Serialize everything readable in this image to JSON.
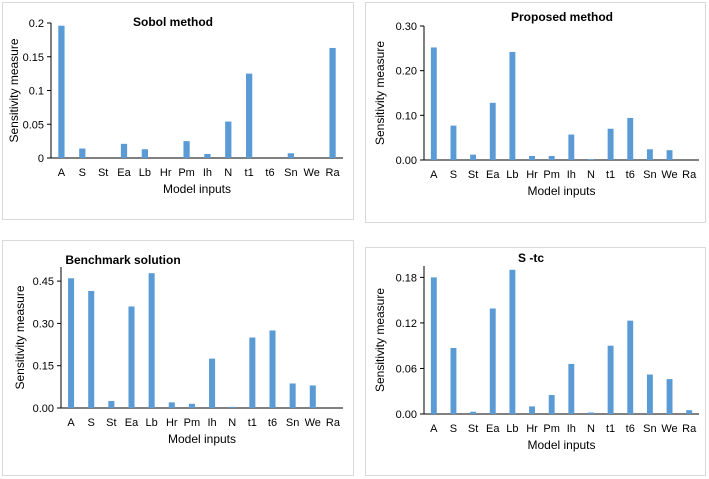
{
  "chart_data": [
    {
      "type": "bar",
      "title": "Sobol method",
      "xlabel": "Model inputs",
      "ylabel": "Sensitivity measure",
      "categories": [
        "A",
        "S",
        "St",
        "Ea",
        "Lb",
        "Hr",
        "Pm",
        "Ih",
        "N",
        "t1",
        "t6",
        "Sn",
        "We",
        "Ra"
      ],
      "values": [
        0.196,
        0.014,
        0,
        0.021,
        0.013,
        0,
        0.025,
        0.006,
        0.054,
        0.125,
        0,
        0.007,
        0,
        0.163
      ],
      "ylim": [
        0,
        0.2
      ],
      "yticks": [
        "0",
        "0.05",
        "0.1",
        "0.15",
        "0.2"
      ],
      "ytick_values": [
        0,
        0.05,
        0.1,
        0.15,
        0.2
      ],
      "color": "#5b9bd5"
    },
    {
      "type": "bar",
      "title": "Proposed method",
      "xlabel": "Model inputs",
      "ylabel": "Sensitivity measure",
      "categories": [
        "A",
        "S",
        "St",
        "Ea",
        "Lb",
        "Hr",
        "Pm",
        "Ih",
        "N",
        "t1",
        "t6",
        "Sn",
        "We",
        "Ra"
      ],
      "values": [
        0.252,
        0.077,
        0.012,
        0.128,
        0.242,
        0.009,
        0.009,
        0.057,
        0.002,
        0.07,
        0.094,
        0.024,
        0.022,
        0
      ],
      "ylim": [
        0,
        0.3
      ],
      "yticks": [
        "0.00",
        "0.10",
        "0.20",
        "0.30"
      ],
      "ytick_values": [
        0,
        0.1,
        0.2,
        0.3
      ],
      "color": "#5b9bd5"
    },
    {
      "type": "bar",
      "title": "Benchmark solution",
      "xlabel": "Model inputs",
      "ylabel": "Sensitivity measure",
      "categories": [
        "A",
        "S",
        "St",
        "Ea",
        "Lb",
        "Hr",
        "Pm",
        "Ih",
        "N",
        "t1",
        "t6",
        "Sn",
        "We",
        "Ra"
      ],
      "values": [
        0.46,
        0.415,
        0.025,
        0.36,
        0.478,
        0.02,
        0.015,
        0.175,
        0.004,
        0.25,
        0.275,
        0.087,
        0.08,
        0
      ],
      "ylim": [
        0,
        0.5
      ],
      "yticks": [
        "0.00",
        "0.15",
        "0.30",
        "0.45"
      ],
      "ytick_values": [
        0,
        0.15,
        0.3,
        0.45
      ],
      "color": "#5b9bd5"
    },
    {
      "type": "bar",
      "title": "S -tc",
      "xlabel": "Model inputs",
      "ylabel": "Sensitivity measure",
      "categories": [
        "A",
        "S",
        "St",
        "Ea",
        "Lb",
        "Hr",
        "Pm",
        "Ih",
        "N",
        "t1",
        "t6",
        "Sn",
        "We",
        "Ra"
      ],
      "values": [
        0.18,
        0.087,
        0.003,
        0.139,
        0.19,
        0.01,
        0.025,
        0.066,
        0.002,
        0.09,
        0.123,
        0.052,
        0.046,
        0.005
      ],
      "ylim": [
        0,
        0.195
      ],
      "yticks": [
        "0.00",
        "0.06",
        "0.12",
        "0.18"
      ],
      "ytick_values": [
        0,
        0.06,
        0.12,
        0.18
      ],
      "color": "#5b9bd5"
    }
  ]
}
